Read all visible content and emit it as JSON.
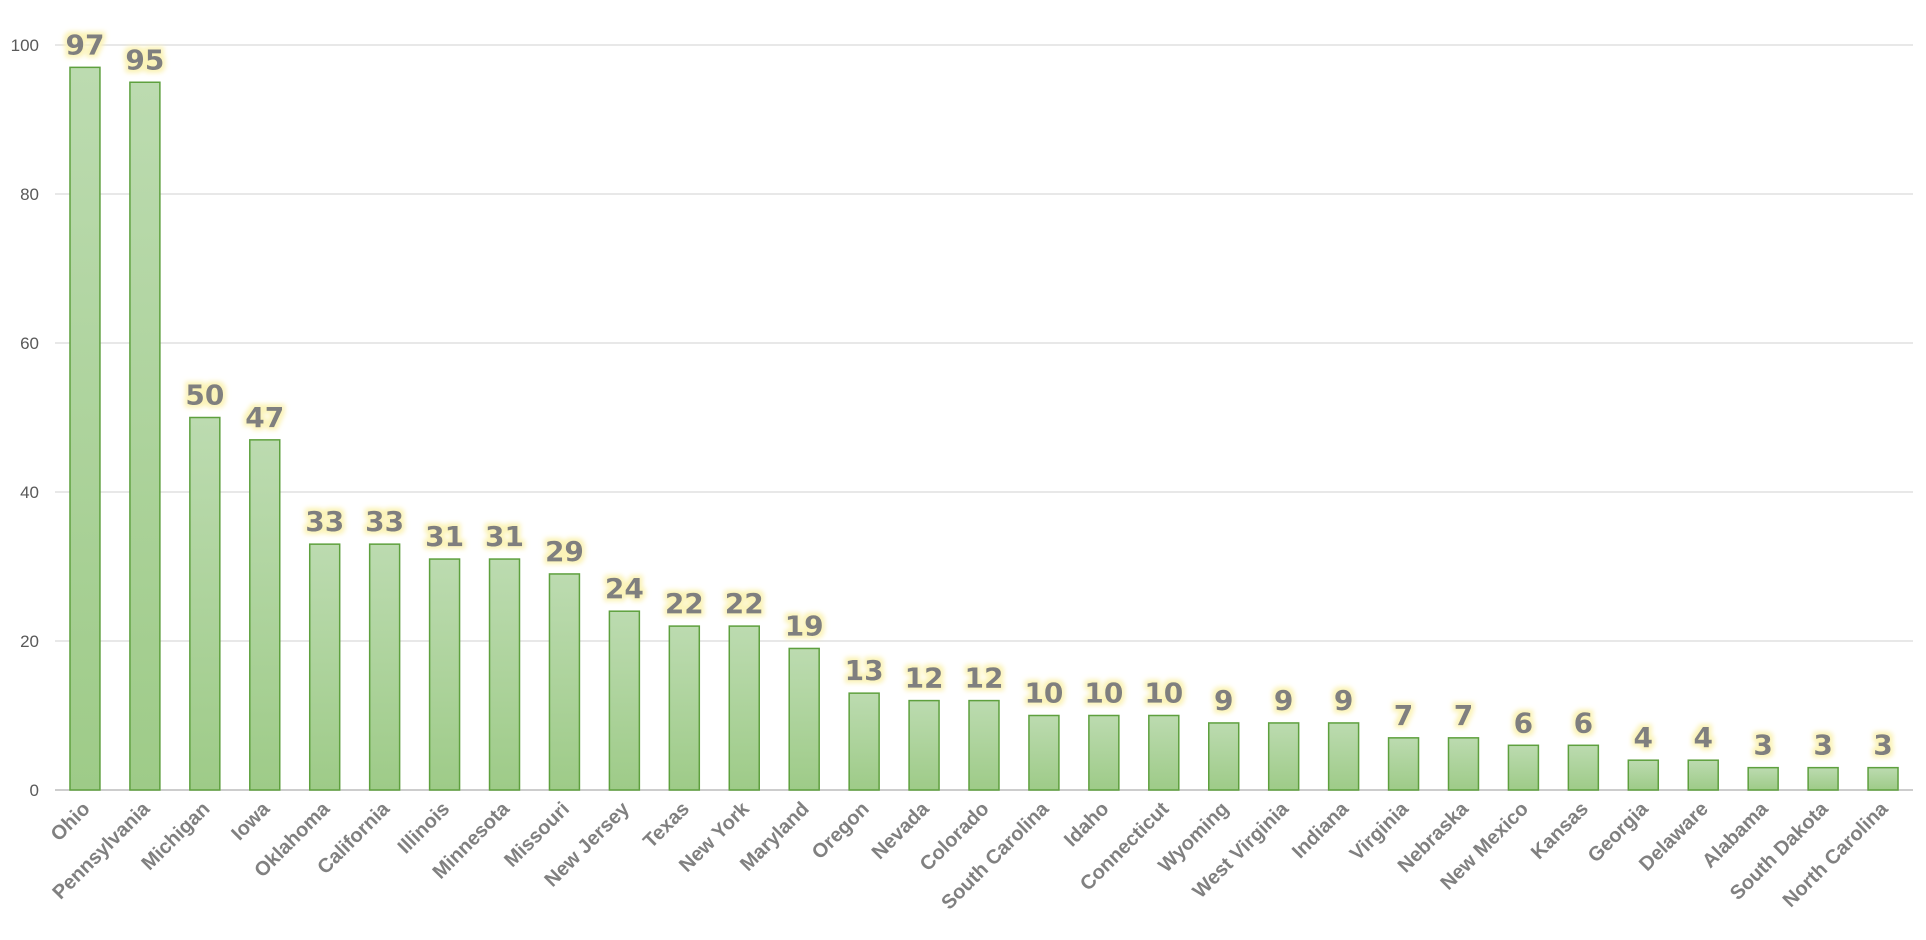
{
  "chart_data": {
    "type": "bar",
    "title": "",
    "xlabel": "",
    "ylabel": "",
    "ylim": [
      0,
      100
    ],
    "yticks": [
      "0",
      "20",
      "40",
      "60",
      "80",
      "100"
    ],
    "grid": true,
    "legend": "none",
    "categories": [
      "Ohio",
      "Pennsylvania",
      "Michigan",
      "Iowa",
      "Oklahoma",
      "California",
      "Illinois",
      "Minnesota",
      "Missouri",
      "New Jersey",
      "Texas",
      "New York",
      "Maryland",
      "Oregon",
      "Nevada",
      "Colorado",
      "South Carolina",
      "Idaho",
      "Connecticut",
      "Wyoming",
      "West Virginia",
      "Indiana",
      "Virginia",
      "Nebraska",
      "New Mexico",
      "Kansas",
      "Georgia",
      "Delaware",
      "Alabama",
      "South Dakota",
      "North Carolina"
    ],
    "values": [
      97,
      95,
      50,
      47,
      33,
      33,
      31,
      31,
      29,
      24,
      22,
      22,
      19,
      13,
      12,
      12,
      10,
      10,
      10,
      9,
      9,
      9,
      7,
      7,
      6,
      6,
      4,
      4,
      3,
      3,
      3
    ],
    "colors": {
      "bar_top": "#bcdbb0",
      "bar_bottom": "#9ecb88",
      "bar_stroke": "#5ea03e",
      "grid": "#d9d9d9",
      "label_glow": "#fbf3b8"
    }
  }
}
